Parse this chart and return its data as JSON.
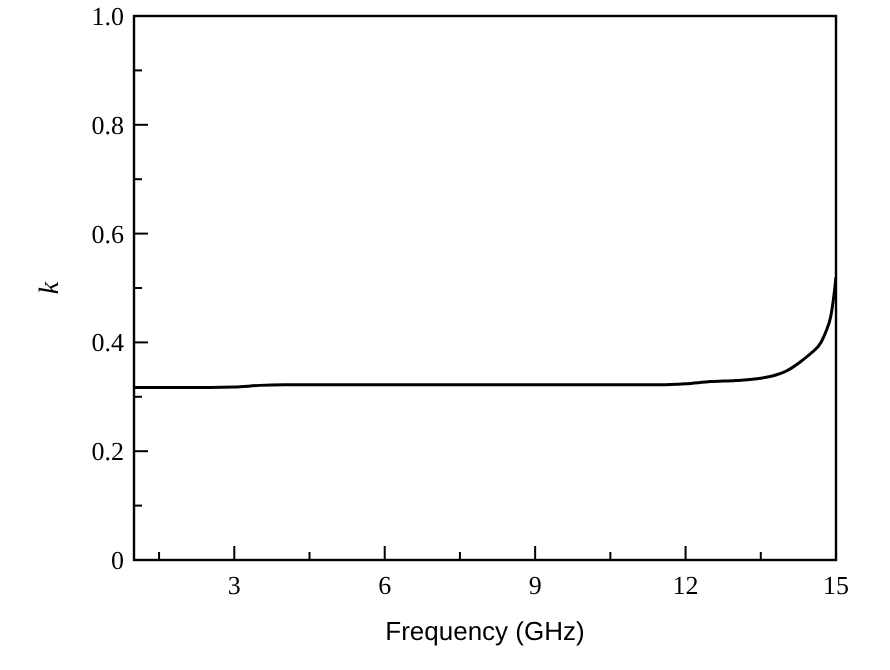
{
  "chart_data": {
    "type": "line",
    "xlabel": "Frequency  (GHz)",
    "ylabel": "k",
    "x": [
      1,
      2,
      3,
      3.5,
      4,
      6,
      9,
      11.5,
      12,
      12.5,
      13,
      13.5,
      13.8,
      14,
      14.3,
      14.5,
      14.7,
      14.8,
      14.9,
      14.95,
      15
    ],
    "series": [
      {
        "color": "#000000",
        "values": [
          0.317,
          0.317,
          0.318,
          0.321,
          0.322,
          0.322,
          0.322,
          0.322,
          0.324,
          0.328,
          0.33,
          0.334,
          0.34,
          0.347,
          0.365,
          0.38,
          0.4,
          0.42,
          0.45,
          0.48,
          0.52
        ]
      }
    ],
    "xlim": [
      1,
      15
    ],
    "xticks": [
      {
        "value": 1.5,
        "label": null
      },
      3,
      {
        "value": 4.5,
        "label": null
      },
      6,
      {
        "value": 7.5,
        "label": null
      },
      9,
      {
        "value": 10.5,
        "label": null
      },
      12,
      {
        "value": 13.5,
        "label": null
      },
      15
    ],
    "ylim": [
      0,
      1
    ],
    "yticks": [
      {
        "value": 0,
        "label": "0"
      },
      {
        "value": 0.1,
        "label": null
      },
      {
        "value": 0.2,
        "label": "0.2"
      },
      {
        "value": 0.3,
        "label": null
      },
      {
        "value": 0.4,
        "label": "0.4"
      },
      {
        "value": 0.5,
        "label": null
      },
      {
        "value": 0.6,
        "label": "0.6"
      },
      {
        "value": 0.7,
        "label": null
      },
      {
        "value": 0.8,
        "label": "0.8"
      },
      {
        "value": 0.9,
        "label": null
      },
      {
        "value": 1,
        "label": "1.0"
      }
    ],
    "grid": false,
    "marker": "none",
    "line_style": "solid"
  }
}
